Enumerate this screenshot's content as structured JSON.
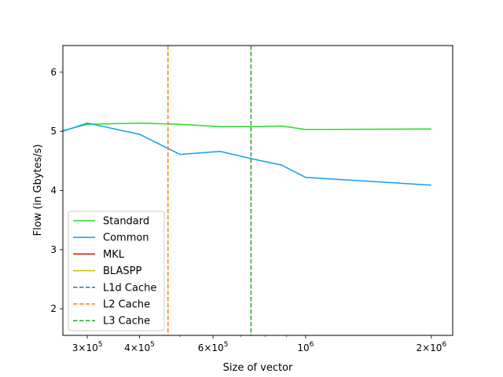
{
  "chart_data": {
    "type": "line",
    "title": "",
    "xlabel": "Size of vector",
    "ylabel": "Flow (in Gbytes/s)",
    "xscale": "log",
    "xlim": [
      262144,
      2250000
    ],
    "ylim": [
      1.55,
      6.45
    ],
    "grid": false,
    "legend_position": "lower-left",
    "x_ticks": [
      {
        "value": 300000,
        "mantissa": "3",
        "sep": "×",
        "base": "10",
        "exp": "5"
      },
      {
        "value": 400000,
        "mantissa": "4",
        "sep": "×",
        "base": "10",
        "exp": "5"
      },
      {
        "value": 600000,
        "mantissa": "6",
        "sep": "×",
        "base": "10",
        "exp": "5"
      },
      {
        "value": 1000000,
        "mantissa": "",
        "sep": "",
        "base": "10",
        "exp": "6"
      },
      {
        "value": 2000000,
        "mantissa": "2",
        "sep": "×",
        "base": "10",
        "exp": "6"
      }
    ],
    "y_ticks": [
      2,
      3,
      4,
      5,
      6
    ],
    "series": [
      {
        "name": "Standard",
        "color": "#22dd22",
        "style": "solid",
        "x": [
          262144,
          300000,
          400000,
          500000,
          624000,
          750000,
          875000,
          1000000,
          2000000
        ],
        "y": [
          5.01,
          5.12,
          5.14,
          5.12,
          5.08,
          5.08,
          5.09,
          5.03,
          5.04
        ]
      },
      {
        "name": "Common",
        "color": "#11a0f0",
        "style": "solid",
        "x": [
          262144,
          300000,
          400000,
          500000,
          624000,
          750000,
          875000,
          1000000,
          2000000
        ],
        "y": [
          5.0,
          5.14,
          4.95,
          4.61,
          4.66,
          4.53,
          4.43,
          4.22,
          4.09
        ]
      },
      {
        "name": "MKL",
        "color": "#ee0000",
        "style": "solid",
        "x": [],
        "y": []
      },
      {
        "name": "BLASPP",
        "color": "#ccbb00",
        "style": "solid",
        "x": [],
        "y": []
      }
    ],
    "vlines": [
      {
        "name": "L1d Cache",
        "color": "#1f77b4",
        "style": "dashed",
        "x": null
      },
      {
        "name": "L2 Cache",
        "color": "#ff7f0e",
        "style": "dashed",
        "x": 468000
      },
      {
        "name": "L3 Cache",
        "color": "#2ca02c",
        "style": "dashed",
        "x": 740000
      }
    ]
  }
}
